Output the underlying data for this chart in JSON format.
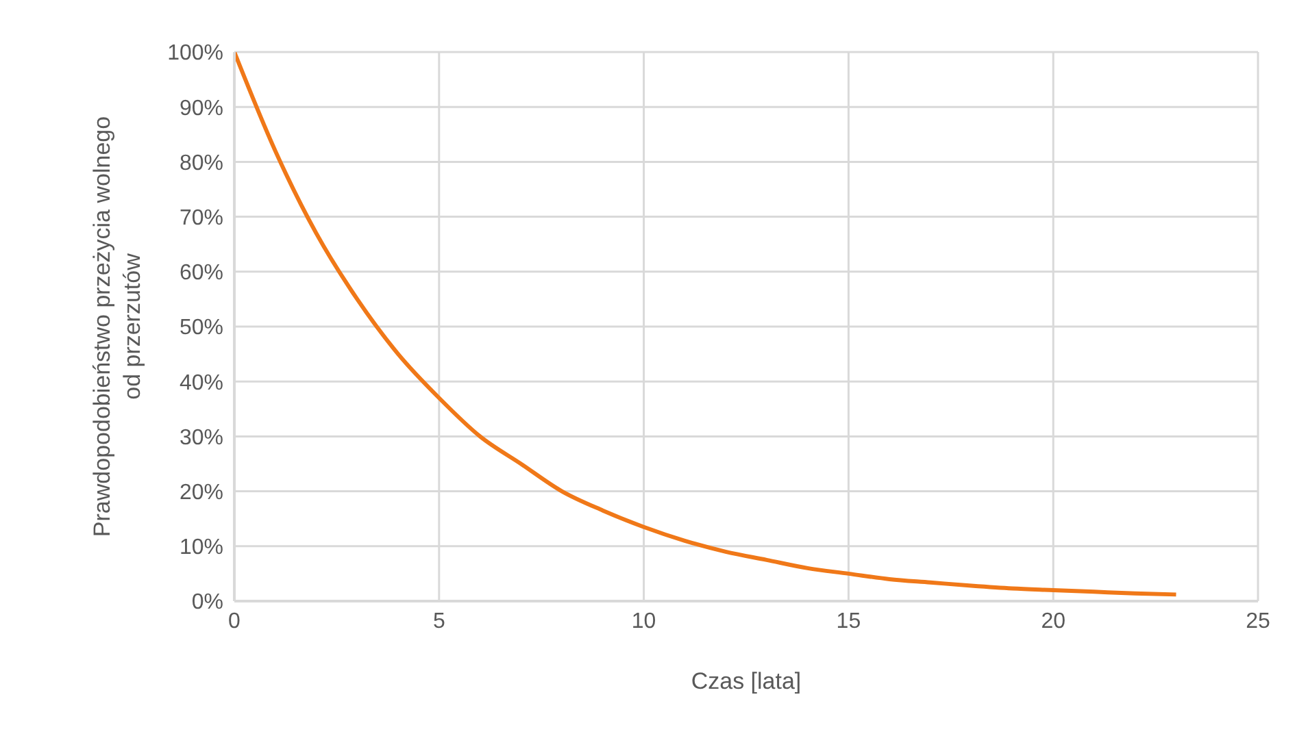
{
  "chart_data": {
    "type": "line",
    "xlabel": "Czas [lata]",
    "ylabel": "Prawdopodobieństwo przeżycia wolnego od przerzutów",
    "x": [
      0,
      1,
      2,
      3,
      4,
      5,
      6,
      7,
      8,
      9,
      10,
      11,
      12,
      13,
      14,
      15,
      16,
      17,
      18,
      19,
      20,
      21,
      22,
      23
    ],
    "series": [
      {
        "color": "#f07818",
        "values": [
          100,
          82,
          67,
          55,
          45,
          37,
          30,
          25,
          20,
          16.5,
          13.5,
          11,
          9,
          7.5,
          6,
          5,
          4,
          3.4,
          2.8,
          2.3,
          2,
          1.7,
          1.4,
          1.2
        ]
      }
    ],
    "xlim": [
      0,
      25
    ],
    "xticks": [
      0,
      5,
      10,
      15,
      20,
      25
    ],
    "ylim": [
      0,
      100
    ],
    "yticks": [
      {
        "value": 0,
        "label": "0%"
      },
      {
        "value": 10,
        "label": "10%"
      },
      {
        "value": 20,
        "label": "20%"
      },
      {
        "value": 30,
        "label": "30%"
      },
      {
        "value": 40,
        "label": "40%"
      },
      {
        "value": 50,
        "label": "50%"
      },
      {
        "value": 60,
        "label": "60%"
      },
      {
        "value": 70,
        "label": "70%"
      },
      {
        "value": 80,
        "label": "80%"
      },
      {
        "value": 90,
        "label": "90%"
      },
      {
        "value": 100,
        "label": "100%"
      }
    ],
    "grid": true,
    "marker": "none",
    "line_style": "solid",
    "legend": false
  }
}
